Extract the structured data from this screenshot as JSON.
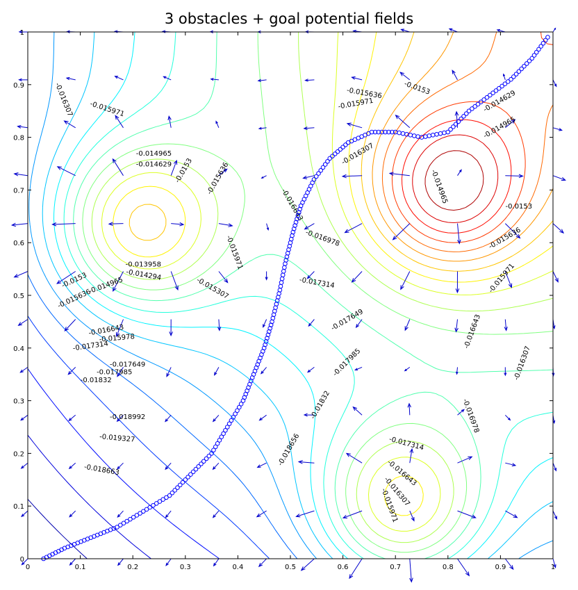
{
  "chart_data": {
    "type": "contour",
    "title": "3 obstacles + goal potential fields",
    "xlabel": "",
    "ylabel": "",
    "xlim": [
      0,
      1
    ],
    "ylim": [
      0,
      1
    ],
    "x_ticks": [
      "0",
      "0.1",
      "0.2",
      "0.3",
      "0.4",
      "0.5",
      "0.6",
      "0.7",
      "0.8",
      "0.9",
      "1"
    ],
    "y_ticks": [
      "0",
      "0.1",
      "0.2",
      "0.3",
      "0.4",
      "0.5",
      "0.6",
      "0.7",
      "0.8",
      "0.9",
      "1"
    ],
    "grid": false,
    "obstacles": [
      {
        "x": 0.21,
        "y": 0.63
      },
      {
        "x": 0.8,
        "y": 0.7
      },
      {
        "x": 0.71,
        "y": 0.1
      }
    ],
    "goal": {
      "x": 1.0,
      "y": 1.0
    },
    "path": {
      "marker": "circle",
      "points": [
        [
          0.03,
          0.0
        ],
        [
          0.07,
          0.02
        ],
        [
          0.12,
          0.04
        ],
        [
          0.17,
          0.06
        ],
        [
          0.22,
          0.09
        ],
        [
          0.27,
          0.12
        ],
        [
          0.31,
          0.16
        ],
        [
          0.35,
          0.2
        ],
        [
          0.38,
          0.25
        ],
        [
          0.41,
          0.3
        ],
        [
          0.43,
          0.35
        ],
        [
          0.45,
          0.4
        ],
        [
          0.465,
          0.45
        ],
        [
          0.48,
          0.51
        ],
        [
          0.49,
          0.56
        ],
        [
          0.505,
          0.62
        ],
        [
          0.52,
          0.67
        ],
        [
          0.545,
          0.72
        ],
        [
          0.575,
          0.76
        ],
        [
          0.61,
          0.79
        ],
        [
          0.655,
          0.81
        ],
        [
          0.7,
          0.81
        ],
        [
          0.75,
          0.8
        ],
        [
          0.8,
          0.81
        ],
        [
          0.84,
          0.85
        ],
        [
          0.88,
          0.88
        ],
        [
          0.92,
          0.91
        ],
        [
          0.96,
          0.95
        ],
        [
          0.99,
          0.99
        ]
      ]
    },
    "contour_labels": [
      {
        "text": "-0.016307",
        "x": 0.065,
        "y": 0.87,
        "rot": -68
      },
      {
        "text": "-0.015971",
        "x": 0.15,
        "y": 0.85,
        "rot": -18
      },
      {
        "text": "-0.014965",
        "x": 0.24,
        "y": 0.765,
        "rot": 0
      },
      {
        "text": "-0.014629",
        "x": 0.24,
        "y": 0.745,
        "rot": 0
      },
      {
        "text": "-0.0153",
        "x": 0.3,
        "y": 0.735,
        "rot": 60
      },
      {
        "text": "-0.015636",
        "x": 0.365,
        "y": 0.72,
        "rot": 60
      },
      {
        "text": "-0.013958",
        "x": 0.22,
        "y": 0.555,
        "rot": 0
      },
      {
        "text": "-0.014294",
        "x": 0.22,
        "y": 0.535,
        "rot": -10
      },
      {
        "text": "-0.015971",
        "x": 0.39,
        "y": 0.58,
        "rot": -70
      },
      {
        "text": "-0.015307",
        "x": 0.35,
        "y": 0.51,
        "rot": -30
      },
      {
        "text": "-0.0153",
        "x": 0.09,
        "y": 0.525,
        "rot": 25
      },
      {
        "text": "-0.014965",
        "x": 0.15,
        "y": 0.515,
        "rot": 20
      },
      {
        "text": "-0.015636",
        "x": 0.09,
        "y": 0.49,
        "rot": 25
      },
      {
        "text": "-0.016643",
        "x": 0.15,
        "y": 0.43,
        "rot": 10
      },
      {
        "text": "-0.015978",
        "x": 0.17,
        "y": 0.415,
        "rot": 5
      },
      {
        "text": "-0.017314",
        "x": 0.12,
        "y": 0.4,
        "rot": 8
      },
      {
        "text": "-0.017649",
        "x": 0.19,
        "y": 0.365,
        "rot": 0
      },
      {
        "text": "-0.017985",
        "x": 0.165,
        "y": 0.35,
        "rot": 0
      },
      {
        "text": "-0.01832",
        "x": 0.13,
        "y": 0.335,
        "rot": 0
      },
      {
        "text": "-0.018992",
        "x": 0.19,
        "y": 0.265,
        "rot": 0
      },
      {
        "text": "-0.019327",
        "x": 0.17,
        "y": 0.225,
        "rot": -5
      },
      {
        "text": "-0.018663",
        "x": 0.14,
        "y": 0.165,
        "rot": -10
      },
      {
        "text": "-0.015636",
        "x": 0.64,
        "y": 0.88,
        "rot": -10
      },
      {
        "text": "-0.0153",
        "x": 0.74,
        "y": 0.89,
        "rot": -20
      },
      {
        "text": "-0.015971",
        "x": 0.625,
        "y": 0.86,
        "rot": 10
      },
      {
        "text": "-0.014629",
        "x": 0.9,
        "y": 0.865,
        "rot": 30
      },
      {
        "text": "-0.014965",
        "x": 0.9,
        "y": 0.815,
        "rot": 30
      },
      {
        "text": "-0.016307",
        "x": 0.63,
        "y": 0.765,
        "rot": 30
      },
      {
        "text": "-0.014965",
        "x": 0.78,
        "y": 0.705,
        "rot": -70
      },
      {
        "text": "-0.016643",
        "x": 0.5,
        "y": 0.67,
        "rot": -60
      },
      {
        "text": "-0.0153",
        "x": 0.935,
        "y": 0.665,
        "rot": 0
      },
      {
        "text": "-0.016978",
        "x": 0.56,
        "y": 0.605,
        "rot": -20
      },
      {
        "text": "-0.015636",
        "x": 0.91,
        "y": 0.605,
        "rot": 30
      },
      {
        "text": "-0.015971",
        "x": 0.905,
        "y": 0.53,
        "rot": 50
      },
      {
        "text": "-0.017314",
        "x": 0.55,
        "y": 0.52,
        "rot": -10
      },
      {
        "text": "-0.017649",
        "x": 0.61,
        "y": 0.45,
        "rot": 30
      },
      {
        "text": "-0.016643",
        "x": 0.85,
        "y": 0.43,
        "rot": 70
      },
      {
        "text": "-0.016307",
        "x": 0.945,
        "y": 0.37,
        "rot": 70
      },
      {
        "text": "-0.017985",
        "x": 0.61,
        "y": 0.37,
        "rot": 45
      },
      {
        "text": "-0.01832",
        "x": 0.56,
        "y": 0.29,
        "rot": 60
      },
      {
        "text": "-0.016978",
        "x": 0.84,
        "y": 0.27,
        "rot": -70
      },
      {
        "text": "-0.018656",
        "x": 0.5,
        "y": 0.205,
        "rot": 60
      },
      {
        "text": "-0.017314",
        "x": 0.72,
        "y": 0.215,
        "rot": -15
      },
      {
        "text": "-0.016643",
        "x": 0.71,
        "y": 0.16,
        "rot": -40
      },
      {
        "text": "-0.016307",
        "x": 0.7,
        "y": 0.125,
        "rot": -50
      },
      {
        "text": "-0.015971",
        "x": 0.685,
        "y": 0.1,
        "rot": -70
      }
    ]
  }
}
